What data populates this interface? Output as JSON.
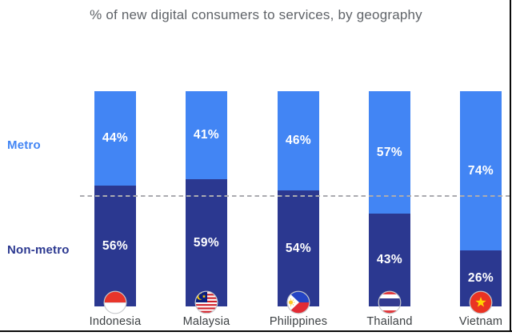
{
  "colors": {
    "metro_blue": "#4285F4",
    "non_metro_navy": "#2B3890",
    "title_gray": "#5F6368",
    "country_gray": "#3C4043",
    "dash_gray": "#ABABB0",
    "value_label_white": "#FFFFFF"
  },
  "chart_data": {
    "type": "bar",
    "variant": "stacked-100-percent",
    "orientation": "vertical",
    "title": "% of new digital consumers to services, by geography",
    "categories": [
      "Indonesia",
      "Malaysia",
      "Philippines",
      "Thailand",
      "Vietnam"
    ],
    "series": [
      {
        "name": "Metro",
        "color": "#4285F4",
        "values": [
          44,
          41,
          46,
          57,
          74
        ]
      },
      {
        "name": "Non-metro",
        "color": "#2B3890",
        "values": [
          56,
          59,
          54,
          43,
          26
        ]
      }
    ],
    "value_suffix": "%",
    "ylim": [
      0,
      100
    ],
    "grid": false,
    "legend_position": "left-axis-labels",
    "reference_line": {
      "value": 50,
      "style": "dashed",
      "color": "#ABABB0"
    },
    "flag_icons": [
      "indonesia-flag-icon",
      "malaysia-flag-icon",
      "philippines-flag-icon",
      "thailand-flag-icon",
      "vietnam-flag-icon"
    ]
  }
}
